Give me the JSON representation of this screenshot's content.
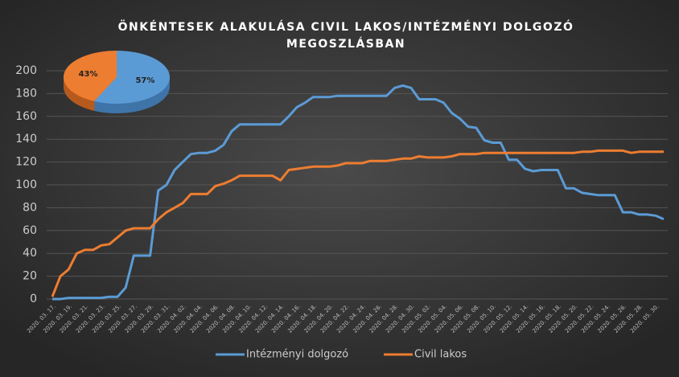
{
  "chart_data": [
    {
      "type": "line",
      "title": [
        "ÖNKÉNTESEK ALAKULÁSA CIVIL LAKOS/INTÉZMÉNYI DOLGOZÓ",
        "MEGOSZLÁSBAN"
      ],
      "categories": [
        "2020. 03. 17.",
        null,
        "2020. 03. 19.",
        null,
        "2020. 03. 21.",
        null,
        "2020. 03. 23.",
        null,
        "2020. 03. 25.",
        null,
        "2020. 03. 27.",
        null,
        "2020. 03. 29.",
        null,
        "2020. 03. 31.",
        null,
        "2020. 04. 02.",
        null,
        "2020. 04. 04.",
        null,
        "2020. 04. 06.",
        null,
        "2020. 04. 08.",
        null,
        "2020. 04. 10.",
        null,
        "2020. 04. 12.",
        null,
        "2020. 04. 14.",
        null,
        "2020. 04. 16.",
        null,
        "2020. 04. 18.",
        null,
        "2020. 04. 20.",
        null,
        "2020. 04. 22.",
        null,
        "2020. 04. 24.",
        null,
        "2020. 04. 26.",
        null,
        "2020. 04. 28.",
        null,
        "2020. 04. 30.",
        null,
        "2020. 05. 02.",
        null,
        "2020. 05. 04.",
        null,
        "2020. 05. 06.",
        null,
        "2020. 05. 08.",
        null,
        "2020. 05. 10.",
        null,
        "2020. 05. 12.",
        null,
        "2020. 05. 14.",
        null,
        "2020. 05. 16.",
        null,
        "2020. 05. 18.",
        null,
        "2020. 05. 20.",
        null,
        "2020. 05. 22.",
        null,
        "2020. 05. 24.",
        null,
        "2020. 05. 26.",
        null,
        "2020. 05. 28.",
        null,
        "2020. 05. 30.",
        null
      ],
      "series": [
        {
          "name": "Intézményi dolgozó",
          "color": "#5b9bd5",
          "values": [
            0,
            0,
            1,
            1,
            1,
            1,
            1,
            2,
            2,
            10,
            38,
            38,
            38,
            95,
            100,
            113,
            120,
            127,
            128,
            128,
            130,
            135,
            147,
            153,
            153,
            153,
            153,
            153,
            153,
            160,
            168,
            172,
            177,
            177,
            177,
            178,
            178,
            178,
            178,
            178,
            178,
            178,
            185,
            187,
            185,
            175,
            175,
            175,
            172,
            163,
            158,
            151,
            150,
            139,
            137,
            137,
            122,
            122,
            114,
            112,
            113,
            113,
            113,
            97,
            97,
            93,
            92,
            91,
            91,
            91,
            76,
            76,
            74,
            74,
            73,
            70
          ]
        },
        {
          "name": "Civil lakos",
          "color": "#ed7d31",
          "values": [
            2,
            20,
            26,
            40,
            43,
            43,
            47,
            48,
            54,
            60,
            62,
            62,
            62,
            70,
            76,
            80,
            84,
            92,
            92,
            92,
            99,
            101,
            104,
            108,
            108,
            108,
            108,
            108,
            104,
            113,
            114,
            115,
            116,
            116,
            116,
            117,
            119,
            119,
            119,
            121,
            121,
            121,
            122,
            123,
            123,
            125,
            124,
            124,
            124,
            125,
            127,
            127,
            127,
            128,
            128,
            128,
            128,
            128,
            128,
            128,
            128,
            128,
            128,
            128,
            128,
            129,
            129,
            130,
            130,
            130,
            130,
            128,
            129,
            129,
            129,
            129
          ]
        }
      ],
      "ylim": [
        0,
        200
      ],
      "yticks": [
        0,
        20,
        40,
        60,
        80,
        100,
        120,
        140,
        160,
        180,
        200
      ],
      "grid": true,
      "legend": "bottom"
    },
    {
      "type": "pie",
      "values": [
        57,
        43
      ],
      "value_labels": [
        "57%",
        "43%"
      ],
      "colors": [
        "#5b9bd5",
        "#ed7d31"
      ]
    }
  ]
}
